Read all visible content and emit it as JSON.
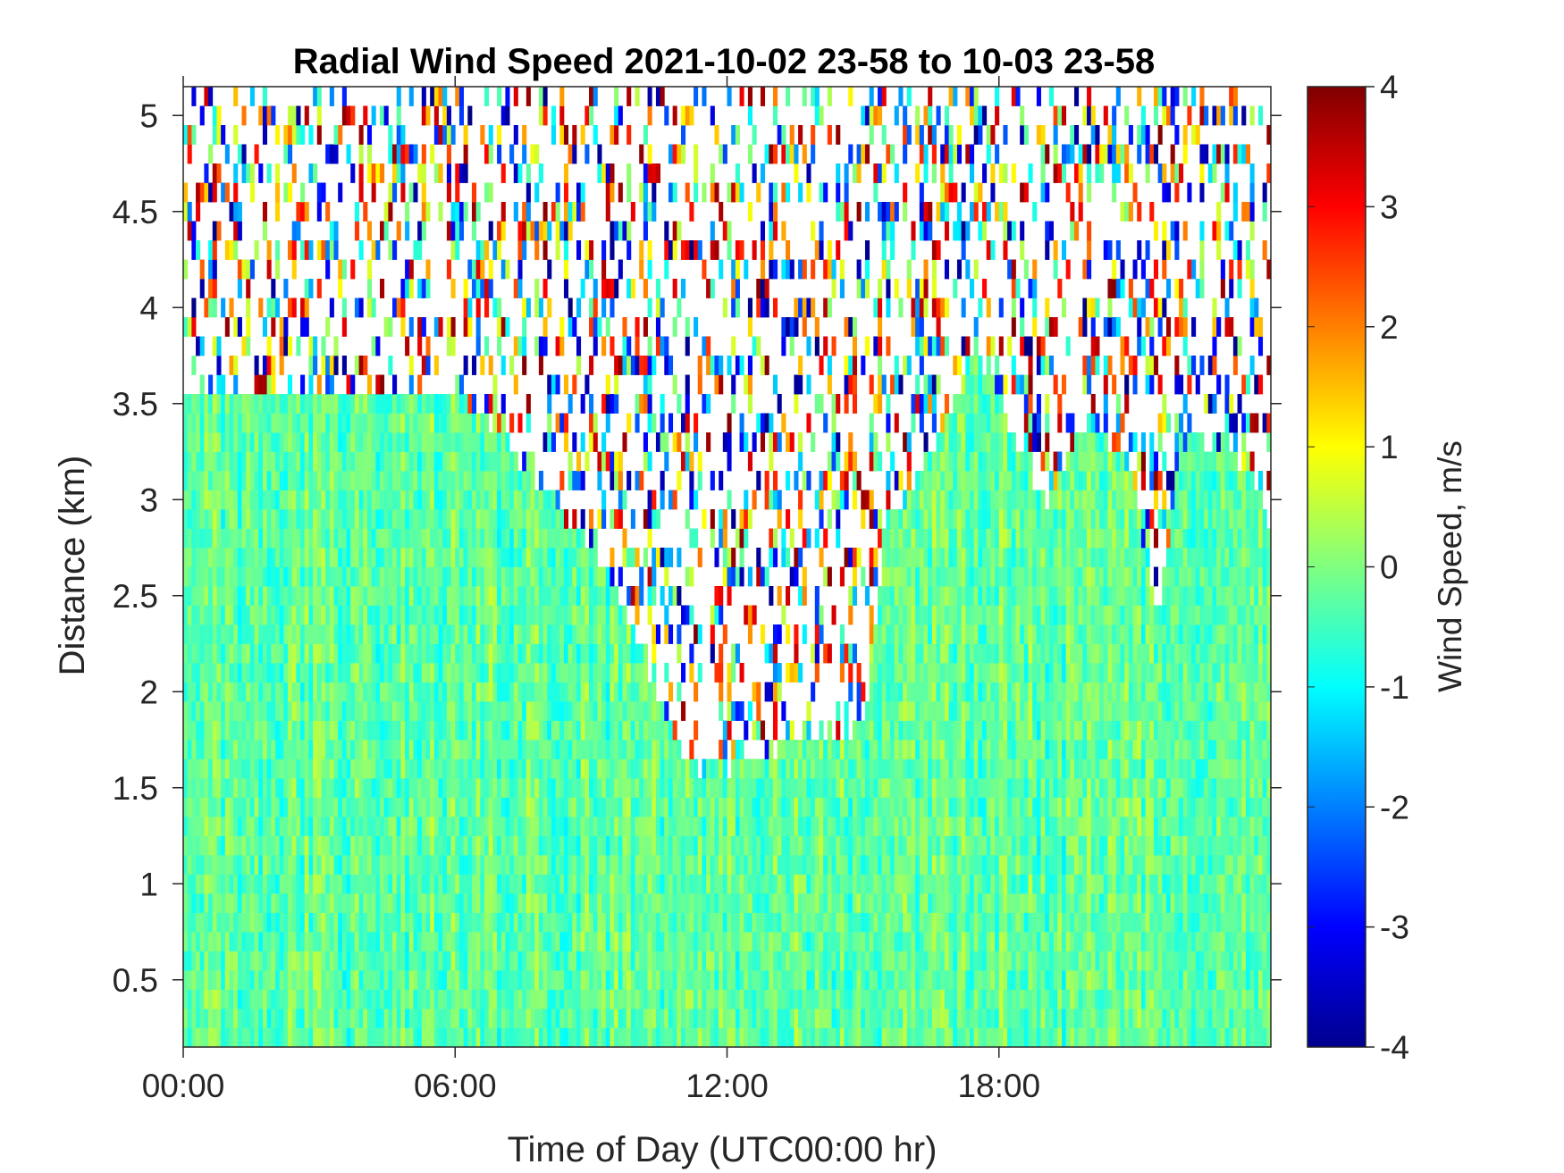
{
  "chart_data": {
    "type": "heatmap",
    "title": "Radial Wind Speed 2021-10-02 23-58 to 10-03 23-58",
    "xlabel": "Time of Day (UTC00:00 hr)",
    "ylabel": "Distance (km)",
    "xlim_hours": [
      0,
      24
    ],
    "ylim_km": [
      0.15,
      5.15
    ],
    "x_ticks": [
      {
        "hour": 0,
        "label": "00:00"
      },
      {
        "hour": 6,
        "label": "06:00"
      },
      {
        "hour": 12,
        "label": "12:00"
      },
      {
        "hour": 18,
        "label": "18:00"
      }
    ],
    "y_ticks": [
      {
        "value": 0.5,
        "label": "0.5"
      },
      {
        "value": 1,
        "label": "1"
      },
      {
        "value": 1.5,
        "label": "1.5"
      },
      {
        "value": 2,
        "label": "2"
      },
      {
        "value": 2.5,
        "label": "2.5"
      },
      {
        "value": 3,
        "label": "3"
      },
      {
        "value": 3.5,
        "label": "3.5"
      },
      {
        "value": 4,
        "label": "4"
      },
      {
        "value": 4.5,
        "label": "4.5"
      },
      {
        "value": 5,
        "label": "5"
      }
    ],
    "colorbar": {
      "label": "Wind Speed, m/s",
      "clim": [
        -4,
        4
      ],
      "ticks": [
        {
          "value": 4,
          "label": "4"
        },
        {
          "value": 3,
          "label": "3"
        },
        {
          "value": 2,
          "label": "2"
        },
        {
          "value": 1,
          "label": "1"
        },
        {
          "value": 0,
          "label": "0"
        },
        {
          "value": -1,
          "label": "-1"
        },
        {
          "value": -2,
          "label": "-2"
        },
        {
          "value": -3,
          "label": "-3"
        },
        {
          "value": -4,
          "label": "-4"
        }
      ],
      "colormap": "jet"
    },
    "valid_data_top_km": {
      "hours": [
        0,
        1,
        2,
        3,
        4,
        5,
        6,
        7,
        7.5,
        8,
        9,
        10,
        10.5,
        11,
        11.5,
        12,
        13,
        14,
        15,
        15.5,
        16,
        17,
        17.5,
        18,
        18.5,
        19,
        20,
        21,
        21.5,
        22,
        23,
        24
      ],
      "km": [
        3.55,
        3.55,
        3.55,
        3.55,
        3.55,
        3.55,
        3.55,
        3.4,
        3.15,
        3.05,
        2.75,
        2.3,
        2.0,
        1.7,
        1.6,
        1.6,
        1.7,
        1.8,
        1.8,
        2.9,
        3.0,
        3.5,
        3.8,
        3.6,
        3.2,
        3.0,
        3.4,
        3.1,
        2.3,
        3.3,
        3.3,
        2.9
      ]
    },
    "typical_wind_speed_ms": [
      -1.0,
      0.5
    ],
    "noise_region": "above valid_data_top_km: sparse random values spanning -4 to 4"
  }
}
